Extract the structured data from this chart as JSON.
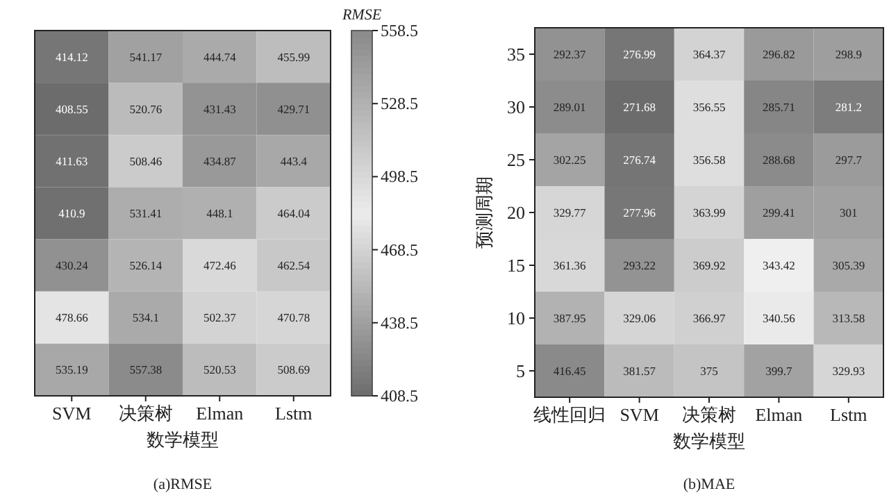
{
  "chart_data": [
    {
      "type": "heatmap",
      "title": "(a)RMSE",
      "xlabel": "数学模型",
      "clabel": "RMSE",
      "categories": [
        "SVM",
        "决策树",
        "Elman",
        "Lstm"
      ],
      "y_categories": [
        null,
        null,
        null,
        null,
        null,
        null,
        null
      ],
      "tick_labels": "x",
      "data_labels": true,
      "colors": [
        "#6c6c6c",
        "#ececec",
        "#8a8a8a"
      ],
      "clim": [
        408.5,
        558.5
      ],
      "cticks": [
        408.5,
        438.5,
        468.5,
        498.5,
        528.5,
        558.5
      ],
      "cells": [
        [
          414.12,
          541.17,
          444.74,
          455.99
        ],
        [
          408.55,
          520.76,
          431.43,
          429.71
        ],
        [
          411.63,
          508.46,
          434.87,
          443.4
        ],
        [
          410.9,
          531.41,
          448.1,
          464.04
        ],
        [
          430.24,
          526.14,
          472.46,
          462.54
        ],
        [
          478.66,
          534.1,
          502.37,
          470.78
        ],
        [
          535.19,
          557.38,
          520.53,
          508.69
        ]
      ]
    },
    {
      "type": "heatmap",
      "title": "(b)MAE",
      "xlabel": "数学模型",
      "ylabel": "预测周期",
      "categories": [
        "线性回归",
        "SVM",
        "决策树",
        "Elman",
        "Lstm"
      ],
      "y_categories": [
        "35",
        "30",
        "25",
        "20",
        "15",
        "10",
        "5"
      ],
      "data_labels": true,
      "colors": [
        "#6c6c6c",
        "#f0f0f0",
        "#8a8a8a"
      ],
      "cells": [
        [
          292.37,
          276.99,
          364.37,
          296.82,
          298.9
        ],
        [
          289.01,
          271.68,
          356.55,
          285.71,
          281.2
        ],
        [
          302.25,
          276.74,
          356.58,
          288.68,
          297.7
        ],
        [
          329.77,
          277.96,
          363.99,
          299.41,
          301
        ],
        [
          361.36,
          293.22,
          369.92,
          343.42,
          305.39
        ],
        [
          387.95,
          329.06,
          366.97,
          340.56,
          313.58
        ],
        [
          416.45,
          381.57,
          375,
          399.7,
          329.93
        ]
      ]
    }
  ]
}
